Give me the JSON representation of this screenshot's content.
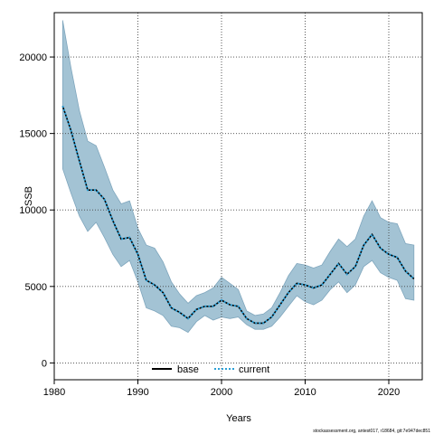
{
  "chart_data": {
    "type": "line",
    "xlabel": "Years",
    "ylabel": "SSB",
    "xlim": [
      1980,
      2024
    ],
    "ylim": [
      -1100,
      22900
    ],
    "x_ticks": [
      1980,
      1990,
      2000,
      2010,
      2020
    ],
    "y_ticks": [
      0,
      5000,
      10000,
      15000,
      20000
    ],
    "grid": true,
    "legend_position": "bottom-center",
    "band_color": "#a3c3d4",
    "band_edge_color": "#7fa6bd",
    "x": [
      1981,
      1982,
      1983,
      1984,
      1985,
      1986,
      1987,
      1988,
      1989,
      1990,
      1991,
      1992,
      1993,
      1994,
      1995,
      1996,
      1997,
      1998,
      1999,
      2000,
      2001,
      2002,
      2003,
      2004,
      2005,
      2006,
      2007,
      2008,
      2009,
      2010,
      2011,
      2012,
      2013,
      2014,
      2015,
      2016,
      2017,
      2018,
      2019,
      2020,
      2021,
      2022,
      2023
    ],
    "band_upper": [
      22400,
      19300,
      16500,
      14500,
      14200,
      12800,
      11300,
      10400,
      10600,
      8800,
      7700,
      7500,
      6600,
      5300,
      4500,
      3900,
      4400,
      4600,
      4900,
      5600,
      5200,
      4800,
      3400,
      3100,
      3200,
      3600,
      4600,
      5700,
      6500,
      6400,
      6200,
      6400,
      7300,
      8100,
      7600,
      8100,
      9600,
      10600,
      9500,
      9200,
      9100,
      7800,
      7700
    ],
    "band_lower": [
      12700,
      11100,
      9600,
      8600,
      9200,
      8200,
      7100,
      6300,
      6700,
      5300,
      3600,
      3400,
      3100,
      2400,
      2300,
      2000,
      2700,
      3100,
      2800,
      3000,
      2900,
      3000,
      2500,
      2200,
      2200,
      2400,
      3000,
      3700,
      4400,
      4000,
      3800,
      4100,
      4800,
      5300,
      4600,
      5100,
      6300,
      6700,
      5900,
      5600,
      5400,
      4200,
      4100
    ],
    "series": [
      {
        "name": "base",
        "style": "solid",
        "color": "#000000",
        "values": [
          16800,
          15200,
          13200,
          11300,
          11300,
          10700,
          9300,
          8100,
          8200,
          7100,
          5400,
          5100,
          4600,
          3600,
          3300,
          2900,
          3500,
          3700,
          3700,
          4100,
          3800,
          3700,
          2900,
          2600,
          2600,
          3000,
          3800,
          4600,
          5200,
          5100,
          4900,
          5100,
          5800,
          6500,
          5800,
          6300,
          7700,
          8400,
          7500,
          7100,
          6900,
          6000,
          5500
        ]
      },
      {
        "name": "current",
        "style": "dotted",
        "color": "#2a9fd6",
        "values": [
          16800,
          15200,
          13200,
          11300,
          11300,
          10700,
          9300,
          8100,
          8200,
          7100,
          5400,
          5100,
          4600,
          3600,
          3300,
          2900,
          3500,
          3700,
          3700,
          4100,
          3800,
          3700,
          2900,
          2600,
          2600,
          3000,
          3800,
          4600,
          5200,
          5100,
          4900,
          5100,
          5800,
          6500,
          5800,
          6300,
          7700,
          8400,
          7500,
          7100,
          6900,
          6000,
          5500
        ]
      }
    ]
  },
  "footer": {
    "source": "stockassessment.org, antest017, r18684, git:7e947dec851"
  }
}
